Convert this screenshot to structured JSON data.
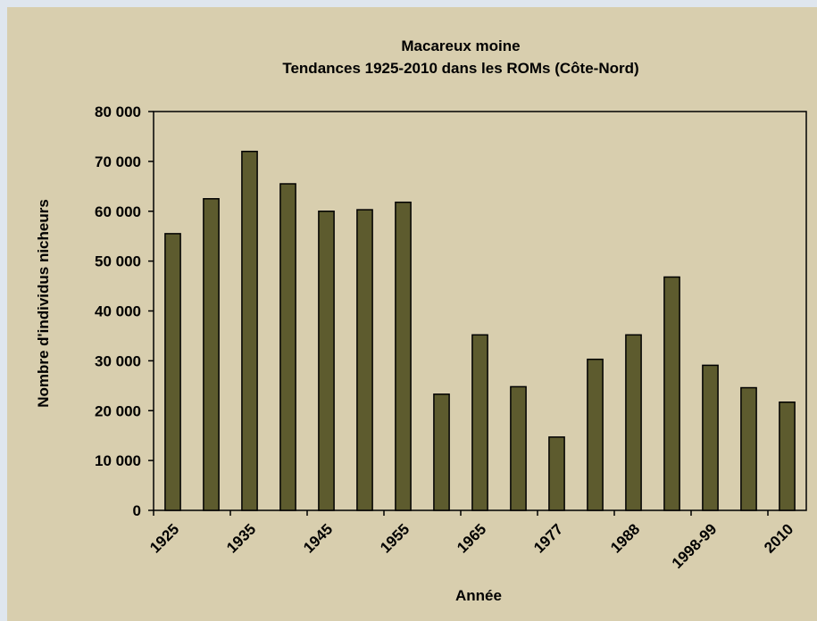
{
  "chart_data": {
    "type": "bar",
    "title": "Macareux moine",
    "subtitle": "Tendances 1925-2010 dans les ROMs (Côte-Nord)",
    "x_label": "Année",
    "y_label": "Nombre d'individus nicheurs",
    "categories": [
      "1925",
      null,
      "1935",
      null,
      "1945",
      null,
      "1955",
      null,
      "1965",
      null,
      "1977",
      null,
      "1988",
      null,
      "1998-99",
      null,
      "2010"
    ],
    "values": [
      55500,
      62500,
      72000,
      65500,
      60000,
      60300,
      61800,
      23300,
      35200,
      24800,
      14700,
      30300,
      35200,
      46800,
      29100,
      24600,
      21700
    ],
    "color": "#5d5b2e",
    "ylim": [
      0,
      80000
    ],
    "yticks": [
      0,
      {
        "value": 10000,
        "label": "10 000"
      },
      {
        "value": 20000,
        "label": "20 000"
      },
      {
        "value": 30000,
        "label": "30 000"
      },
      {
        "value": 40000,
        "label": "40 000"
      },
      {
        "value": 50000,
        "label": "50 000"
      },
      {
        "value": 60000,
        "label": "60 000"
      },
      {
        "value": 70000,
        "label": "70 000"
      },
      {
        "value": 80000,
        "label": "80 000"
      }
    ],
    "grid": false
  }
}
